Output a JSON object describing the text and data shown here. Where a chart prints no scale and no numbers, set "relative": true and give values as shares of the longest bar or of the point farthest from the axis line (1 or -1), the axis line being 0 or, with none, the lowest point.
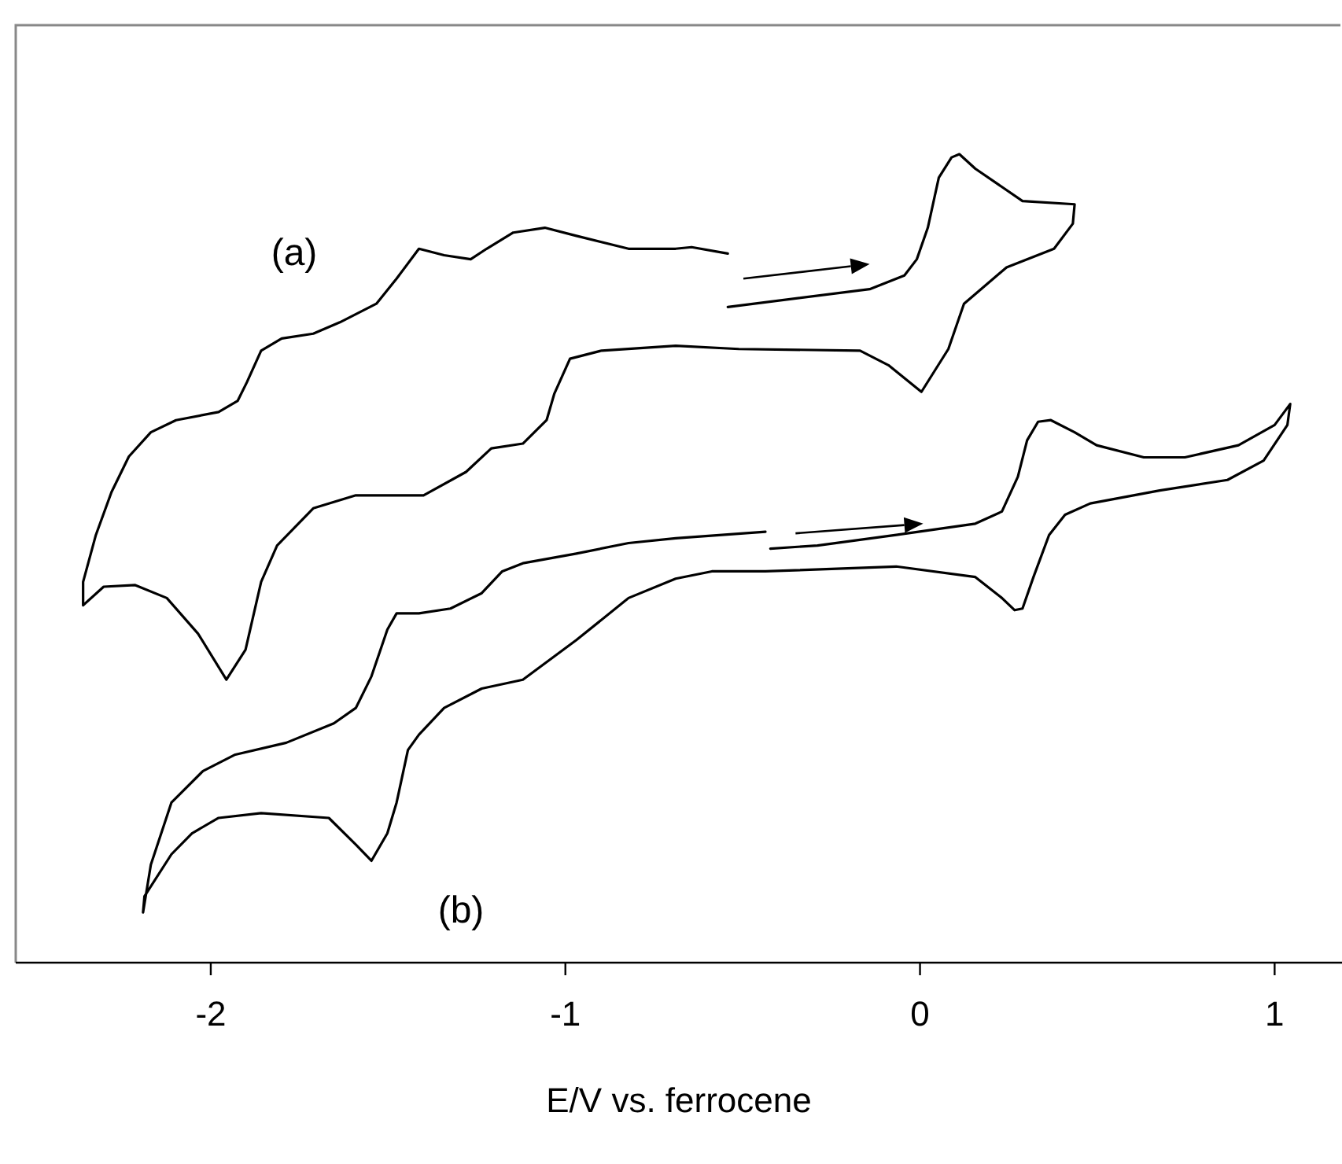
{
  "chart_data": {
    "type": "line",
    "relative": true,
    "xlabel": "E/V vs. ferrocene",
    "xlim": [
      -2.55,
      1.19
    ],
    "xticks": [
      -2,
      -1,
      0,
      1
    ],
    "grid": false,
    "marker": "none",
    "line_style": "solid",
    "annotations": [
      "(a)",
      "(b)"
    ],
    "series": [
      {
        "color": "#000000",
        "x": [
          -0.542,
          -0.142,
          -0.044,
          -0.009,
          0.022,
          0.053,
          0.089,
          0.111,
          0.156,
          0.289,
          0.436,
          0.431,
          0.378,
          0.244,
          0.124,
          0.08,
          0.004,
          -0.089,
          -0.169,
          -0.511,
          -0.689,
          -0.898,
          -0.987,
          -1.031,
          -1.053,
          -1.12,
          -1.209,
          -1.28,
          -1.4,
          -1.591,
          -1.711,
          -1.813,
          -1.858,
          -1.902,
          -1.956,
          -2.036,
          -2.124,
          -2.213,
          -2.302,
          -2.36,
          -2.36,
          -2.324,
          -2.28,
          -2.231,
          -2.169,
          -2.098,
          -1.978,
          -1.924,
          -1.898,
          -1.858,
          -1.8,
          -1.711,
          -1.636,
          -1.533,
          -1.476,
          -1.413,
          -1.342,
          -1.267,
          -1.222,
          -1.147,
          -1.058,
          -0.969,
          -0.822,
          -0.689,
          -0.644,
          -0.542
        ],
        "values": [
          0.811,
          0.833,
          0.85,
          0.87,
          0.909,
          0.971,
          0.996,
          1.0,
          0.982,
          0.942,
          0.938,
          0.914,
          0.883,
          0.86,
          0.815,
          0.759,
          0.706,
          0.739,
          0.757,
          0.759,
          0.763,
          0.757,
          0.747,
          0.704,
          0.671,
          0.642,
          0.636,
          0.607,
          0.578,
          0.578,
          0.562,
          0.516,
          0.471,
          0.387,
          0.35,
          0.407,
          0.451,
          0.467,
          0.465,
          0.442,
          0.471,
          0.529,
          0.582,
          0.626,
          0.656,
          0.671,
          0.681,
          0.695,
          0.718,
          0.757,
          0.772,
          0.778,
          0.792,
          0.815,
          0.846,
          0.883,
          0.875,
          0.87,
          0.883,
          0.903,
          0.909,
          0.899,
          0.883,
          0.883,
          0.885,
          0.877
        ]
      },
      {
        "color": "#000000",
        "x": [
          -0.422,
          -0.289,
          -0.067,
          0.156,
          0.231,
          0.276,
          0.302,
          0.333,
          0.369,
          0.436,
          0.498,
          0.631,
          0.747,
          0.898,
          1.0,
          1.044,
          1.036,
          0.969,
          0.867,
          0.676,
          0.48,
          0.409,
          0.364,
          0.32,
          0.289,
          0.267,
          0.231,
          0.156,
          -0.067,
          -0.436,
          -0.587,
          -0.689,
          -0.822,
          -0.969,
          -1.12,
          -1.236,
          -1.342,
          -1.413,
          -1.444,
          -1.476,
          -1.502,
          -1.547,
          -1.591,
          -1.667,
          -1.858,
          -1.978,
          -2.053,
          -2.111,
          -2.187,
          -2.191,
          -2.169,
          -2.111,
          -2.022,
          -1.933,
          -1.787,
          -1.653,
          -1.591,
          -1.547,
          -1.502,
          -1.476,
          -1.413,
          -1.324,
          -1.236,
          -1.178,
          -1.12,
          -0.969,
          -0.822,
          -0.689,
          -0.436
        ],
        "values": [
          0.512,
          0.516,
          0.529,
          0.543,
          0.558,
          0.601,
          0.646,
          0.669,
          0.671,
          0.656,
          0.64,
          0.625,
          0.625,
          0.64,
          0.665,
          0.691,
          0.665,
          0.621,
          0.597,
          0.584,
          0.568,
          0.554,
          0.529,
          0.477,
          0.438,
          0.436,
          0.451,
          0.477,
          0.49,
          0.484,
          0.484,
          0.475,
          0.451,
          0.399,
          0.35,
          0.339,
          0.315,
          0.282,
          0.263,
          0.198,
          0.16,
          0.126,
          0.146,
          0.179,
          0.185,
          0.179,
          0.16,
          0.134,
          0.082,
          0.062,
          0.121,
          0.198,
          0.237,
          0.257,
          0.272,
          0.296,
          0.315,
          0.354,
          0.412,
          0.432,
          0.432,
          0.438,
          0.457,
          0.484,
          0.494,
          0.506,
          0.519,
          0.525,
          0.533
        ]
      }
    ]
  }
}
